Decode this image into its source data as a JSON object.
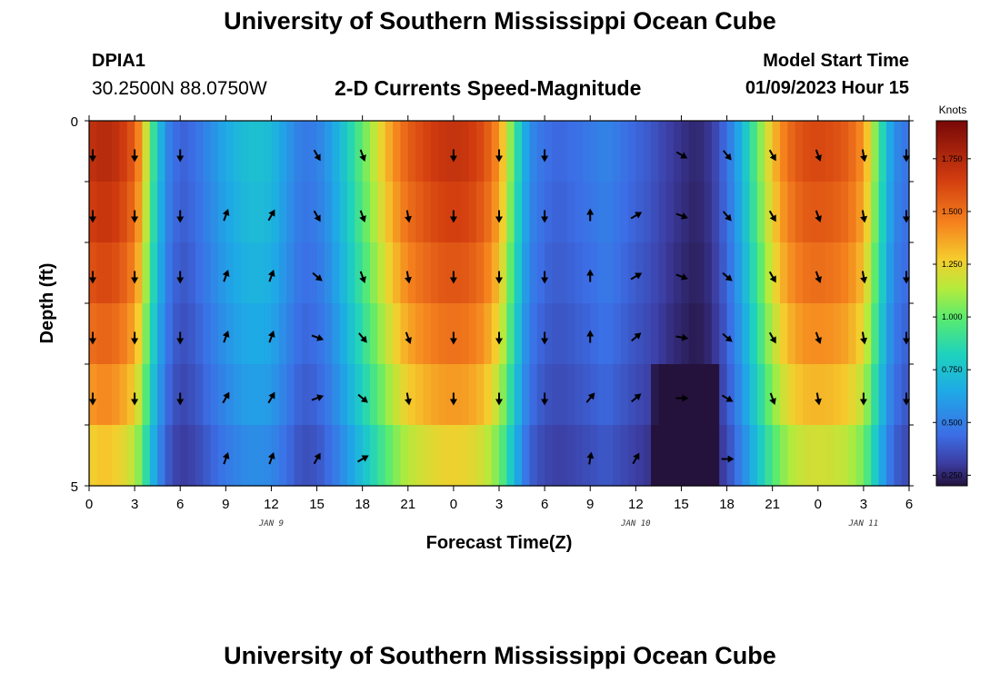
{
  "header": {
    "title": "University of Southern Mississippi Ocean Cube",
    "station_id": "DPIA1",
    "coords": "30.2500N  88.0750W",
    "chart_title": "2-D Currents Speed-Magnitude",
    "model_label": "Model Start Time",
    "model_time": "01/09/2023 Hour 15"
  },
  "footer": {
    "title": "University of Southern Mississippi Ocean Cube"
  },
  "chart_data": {
    "type": "heatmap",
    "title": "2-D Currents Speed-Magnitude",
    "xlabel": "Forecast Time(Z)",
    "ylabel": "Depth (ft)",
    "x_ticks": [
      "0",
      "3",
      "6",
      "9",
      "12",
      "15",
      "18",
      "21",
      "0",
      "3",
      "6",
      "9",
      "12",
      "15",
      "18",
      "21",
      "0",
      "3",
      "6"
    ],
    "x_range": [
      0,
      54
    ],
    "date_labels": [
      {
        "text": "JAN 9",
        "hour": 12
      },
      {
        "text": "JAN 10",
        "hour": 36
      },
      {
        "text": "JAN 11",
        "hour": 51
      }
    ],
    "y_labels": [
      {
        "text": "0",
        "depth": 0
      },
      {
        "text": "5",
        "depth": 5
      }
    ],
    "y_range": [
      0,
      5
    ],
    "colorbar": {
      "units": "Knots",
      "min": 0.2,
      "max": 1.93,
      "ticks": [
        "1.750",
        "1.500",
        "1.250",
        "1.000",
        "0.750",
        "0.500",
        "0.250"
      ],
      "tick_values": [
        1.75,
        1.5,
        1.25,
        1.0,
        0.75,
        0.5,
        0.25
      ]
    },
    "time_profile": [
      [
        0,
        1.7
      ],
      [
        1,
        1.75
      ],
      [
        2,
        1.7
      ],
      [
        3,
        1.55
      ],
      [
        3.6,
        1.3
      ],
      [
        4,
        1.0
      ],
      [
        4.5,
        0.8
      ],
      [
        5,
        0.55
      ],
      [
        6,
        0.4
      ],
      [
        7,
        0.45
      ],
      [
        8,
        0.55
      ],
      [
        9,
        0.65
      ],
      [
        10,
        0.72
      ],
      [
        11,
        0.75
      ],
      [
        12,
        0.72
      ],
      [
        13,
        0.6
      ],
      [
        14,
        0.48
      ],
      [
        15,
        0.5
      ],
      [
        16,
        0.62
      ],
      [
        17,
        0.8
      ],
      [
        18,
        1.0
      ],
      [
        19,
        1.2
      ],
      [
        20,
        1.4
      ],
      [
        21,
        1.55
      ],
      [
        22,
        1.62
      ],
      [
        23,
        1.68
      ],
      [
        24,
        1.7
      ],
      [
        25,
        1.68
      ],
      [
        26,
        1.6
      ],
      [
        27,
        1.4
      ],
      [
        27.6,
        1.15
      ],
      [
        28,
        0.95
      ],
      [
        28.6,
        0.7
      ],
      [
        29,
        0.55
      ],
      [
        30,
        0.45
      ],
      [
        31,
        0.42
      ],
      [
        33,
        0.48
      ],
      [
        34,
        0.52
      ],
      [
        36,
        0.42
      ],
      [
        37,
        0.38
      ],
      [
        38,
        0.32
      ],
      [
        39,
        0.28
      ],
      [
        40,
        0.25
      ],
      [
        41,
        0.3
      ],
      [
        42,
        0.45
      ],
      [
        43,
        0.7
      ],
      [
        44,
        1.0
      ],
      [
        45,
        1.3
      ],
      [
        46,
        1.5
      ],
      [
        47,
        1.6
      ],
      [
        48,
        1.62
      ],
      [
        49,
        1.6
      ],
      [
        50,
        1.55
      ],
      [
        51,
        1.4
      ],
      [
        51.6,
        1.15
      ],
      [
        52,
        0.95
      ],
      [
        52.6,
        0.7
      ],
      [
        53,
        0.55
      ],
      [
        54,
        0.45
      ]
    ],
    "depth_factors": [
      1.0,
      0.97,
      0.93,
      0.88,
      0.82,
      0.74
    ],
    "arrows": [
      {
        "row": 0,
        "angles": [
          180,
          180,
          180,
          null,
          null,
          150,
          160,
          null,
          180,
          180,
          180,
          null,
          null,
          120,
          140,
          150,
          160,
          170,
          180
        ]
      },
      {
        "row": 1,
        "angles": [
          180,
          180,
          180,
          20,
          30,
          150,
          160,
          170,
          180,
          180,
          180,
          0,
          60,
          110,
          140,
          150,
          160,
          170,
          180
        ]
      },
      {
        "row": 2,
        "angles": [
          180,
          180,
          180,
          20,
          20,
          130,
          160,
          170,
          180,
          180,
          180,
          0,
          60,
          110,
          130,
          150,
          160,
          170,
          180
        ]
      },
      {
        "row": 3,
        "angles": [
          180,
          180,
          180,
          20,
          20,
          110,
          140,
          160,
          180,
          180,
          180,
          0,
          50,
          100,
          130,
          150,
          160,
          170,
          180
        ]
      },
      {
        "row": 4,
        "angles": [
          180,
          180,
          180,
          30,
          30,
          70,
          130,
          170,
          180,
          180,
          180,
          40,
          50,
          90,
          120,
          160,
          170,
          180,
          180
        ]
      },
      {
        "row": 5,
        "angles": [
          null,
          null,
          null,
          20,
          20,
          30,
          60,
          null,
          null,
          null,
          null,
          10,
          30,
          null,
          90,
          null,
          null,
          null,
          null
        ]
      }
    ]
  }
}
